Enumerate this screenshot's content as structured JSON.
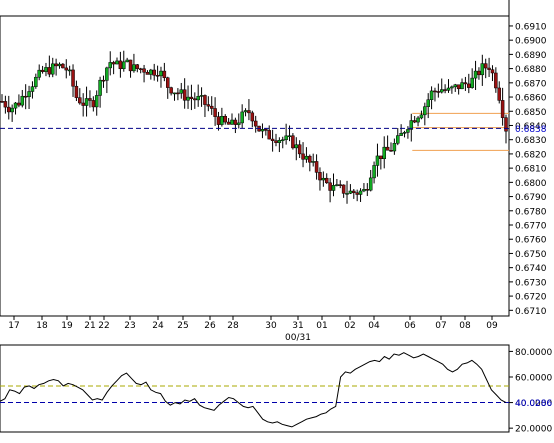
{
  "chart_data": [
    {
      "type": "candlestick",
      "title": "",
      "xlabel": "",
      "ylabel": "",
      "x_ticks": [
        "17",
        "18",
        "19",
        "21",
        "22",
        "23",
        "24",
        "25",
        "26",
        "28",
        "30",
        "31",
        "01",
        "02",
        "04",
        "06",
        "07",
        "08",
        "09"
      ],
      "x_sublabel": "00/31",
      "y_ticks": [
        "0.6710",
        "0.6720",
        "0.6730",
        "0.6740",
        "0.6750",
        "0.6760",
        "0.6770",
        "0.6780",
        "0.6790",
        "0.6800",
        "0.6810",
        "0.6820",
        "0.6830",
        "0.6840",
        "0.6850",
        "0.6860",
        "0.6870",
        "0.6880",
        "0.6890",
        "0.6900",
        "0.6910"
      ],
      "ylim": [
        0.6706,
        0.6917
      ],
      "last_price": 0.6838,
      "last_price_label": "0.6838",
      "price_path": [
        0.6857,
        0.6852,
        0.6856,
        0.6865,
        0.6872,
        0.6878,
        0.688,
        0.6882,
        0.6879,
        0.686,
        0.6855,
        0.6856,
        0.6872,
        0.6885,
        0.6882,
        0.6884,
        0.688,
        0.688,
        0.6878,
        0.6879,
        0.6868,
        0.6864,
        0.6861,
        0.6859,
        0.6858,
        0.6853,
        0.6845,
        0.6841,
        0.684,
        0.6846,
        0.685,
        0.6838,
        0.6833,
        0.6832,
        0.683,
        0.6829,
        0.6822,
        0.6815,
        0.6809,
        0.68,
        0.6796,
        0.6795,
        0.6793,
        0.6793,
        0.6794,
        0.6815,
        0.682,
        0.6823,
        0.683,
        0.684,
        0.6846,
        0.6852,
        0.6863,
        0.6866,
        0.6864,
        0.6867,
        0.6869,
        0.6872,
        0.688,
        0.6882,
        0.6866,
        0.6838
      ],
      "candle_count": 150,
      "levels": [
        {
          "value": 0.68485,
          "color": "#f0a050",
          "from": 0.81
        },
        {
          "value": 0.68385,
          "color": "#f0a050",
          "from": 0.81
        },
        {
          "value": 0.68225,
          "color": "#f0a050",
          "from": 0.81
        }
      ],
      "colors": {
        "up": "#11aa22",
        "down": "#991111",
        "grid_line": "#000088",
        "level": "#f0a050"
      }
    },
    {
      "type": "line",
      "title": "",
      "y_ticks": [
        "20.0000",
        "40.0000",
        "60.0000",
        "80.0000"
      ],
      "ylim": [
        17,
        85
      ],
      "current_value": 40.0286,
      "current_label": "40.0286",
      "guide_levels": [
        {
          "value": 53,
          "color": "#aaaa00"
        },
        {
          "value": 40.0286,
          "color": "#0000aa"
        }
      ],
      "values": [
        41,
        43,
        50,
        49,
        47,
        52,
        53,
        51,
        54,
        55,
        57,
        58,
        57,
        53,
        55,
        54,
        52,
        50,
        46,
        42,
        43,
        42,
        48,
        53,
        57,
        61,
        63,
        59,
        55,
        54,
        56,
        50,
        48,
        47,
        41,
        38,
        40,
        39,
        42,
        41,
        43,
        38,
        36,
        35,
        34,
        38,
        41,
        44,
        43,
        40,
        37,
        36,
        37,
        32,
        27,
        25,
        24,
        25,
        23,
        22,
        21,
        23,
        25,
        27,
        28,
        29,
        31,
        32,
        35,
        37,
        60,
        64,
        63,
        66,
        68,
        70,
        72,
        73,
        72,
        76,
        74,
        78,
        77,
        79,
        77,
        75,
        76,
        78,
        76,
        74,
        72,
        70,
        66,
        64,
        66,
        70,
        71,
        73,
        70,
        66,
        58,
        50,
        46,
        42,
        40
      ]
    }
  ]
}
